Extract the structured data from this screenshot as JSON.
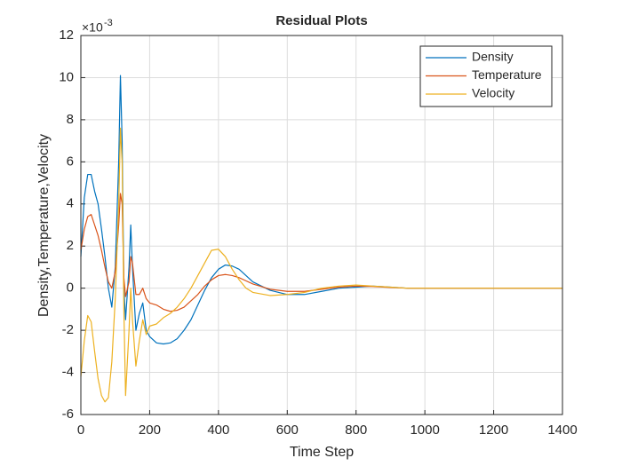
{
  "chart_data": {
    "type": "line",
    "title": "Residual Plots",
    "xlabel": "Time Step",
    "ylabel": "Density,Temperature,Velocity",
    "y_multiplier": "×10",
    "y_multiplier_exponent": "-3",
    "x": [
      0,
      10,
      20,
      30,
      40,
      50,
      60,
      70,
      80,
      90,
      100,
      110,
      115,
      120,
      125,
      130,
      140,
      145,
      150,
      160,
      170,
      180,
      190,
      200,
      220,
      240,
      260,
      280,
      300,
      320,
      340,
      360,
      380,
      400,
      420,
      440,
      460,
      480,
      500,
      550,
      600,
      650,
      700,
      750,
      800,
      850,
      900,
      950,
      1000,
      1100,
      1200,
      1300,
      1400
    ],
    "series": [
      {
        "name": "Density",
        "color": "#0072bd",
        "values": [
          1.5,
          4.3,
          5.4,
          5.4,
          4.6,
          4,
          2.8,
          1.5,
          0,
          -0.9,
          1.0,
          6,
          10.1,
          7,
          0,
          -1.5,
          1,
          3,
          1,
          -2,
          -1.2,
          -0.7,
          -2,
          -2.3,
          -2.6,
          -2.65,
          -2.6,
          -2.4,
          -2,
          -1.5,
          -0.8,
          -0.1,
          0.5,
          0.9,
          1.1,
          1.05,
          0.9,
          0.6,
          0.3,
          -0.1,
          -0.3,
          -0.3,
          -0.15,
          0,
          0.05,
          0.1,
          0.05,
          0,
          0,
          0,
          0,
          0,
          0
        ]
      },
      {
        "name": "Temperature",
        "color": "#d95319",
        "values": [
          1.8,
          2.8,
          3.4,
          3.5,
          3.0,
          2.5,
          1.8,
          1.0,
          0.3,
          0,
          0.8,
          3,
          4.5,
          4.0,
          0.5,
          -0.4,
          0.3,
          1.5,
          1.2,
          -0.3,
          -0.3,
          0,
          -0.5,
          -0.7,
          -0.8,
          -1.0,
          -1.1,
          -1.05,
          -0.9,
          -0.6,
          -0.3,
          0.1,
          0.4,
          0.6,
          0.65,
          0.6,
          0.5,
          0.35,
          0.2,
          -0.05,
          -0.15,
          -0.15,
          -0.05,
          0.05,
          0.1,
          0.08,
          0.03,
          0,
          0,
          0,
          0,
          0,
          0
        ]
      },
      {
        "name": "Velocity",
        "color": "#edb120",
        "values": [
          -4.2,
          -2.5,
          -1.3,
          -1.6,
          -3,
          -4.3,
          -5.1,
          -5.4,
          -5.2,
          -3.5,
          -0.5,
          4,
          7.6,
          6,
          -1,
          -5.1,
          -2,
          0,
          -1.5,
          -3.7,
          -2.5,
          -1.5,
          -2.2,
          -1.8,
          -1.7,
          -1.4,
          -1.2,
          -0.9,
          -0.5,
          0,
          0.6,
          1.2,
          1.8,
          1.85,
          1.5,
          0.9,
          0.4,
          0,
          -0.2,
          -0.35,
          -0.3,
          -0.2,
          0,
          0.1,
          0.15,
          0.1,
          0.05,
          0,
          0,
          0,
          0,
          0,
          0
        ]
      }
    ],
    "xlim": [
      0,
      1400
    ],
    "xticks": [
      0,
      200,
      400,
      600,
      800,
      1000,
      1200,
      1400
    ],
    "ylim": [
      -6,
      12
    ],
    "yticks": [
      -6,
      -4,
      -2,
      0,
      2,
      4,
      6,
      8,
      10,
      12
    ],
    "grid": true,
    "legend_position": "northeast"
  }
}
